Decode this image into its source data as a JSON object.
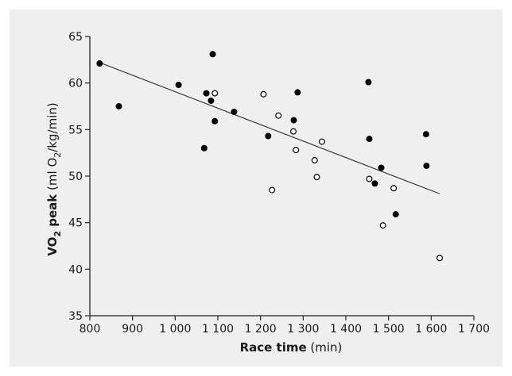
{
  "chart_data": {
    "type": "scatter",
    "title": "",
    "xlabel_bold": "Race time",
    "xlabel_unit": "(min)",
    "ylabel_bold_1": "VO",
    "ylabel_bold_sub": "2",
    "ylabel_bold_2": " peak",
    "ylabel_unit_1": " (ml O",
    "ylabel_unit_sub": "2",
    "ylabel_unit_2": "/kg/min)",
    "xlim": [
      800,
      1700
    ],
    "ylim": [
      35,
      65
    ],
    "x_ticks": [
      800,
      900,
      1000,
      1100,
      1200,
      1300,
      1400,
      1500,
      1600,
      1700
    ],
    "x_tick_labels": [
      "800",
      "900",
      "1 000",
      "1 100",
      "1 200",
      "1 300",
      "1 400",
      "1 500",
      "1 600",
      "1 700"
    ],
    "y_ticks": [
      35,
      40,
      45,
      50,
      55,
      60,
      65
    ],
    "y_tick_labels": [
      "35",
      "40",
      "45",
      "50",
      "55",
      "60",
      "65"
    ],
    "grid": false,
    "legend": "none",
    "series": [
      {
        "marker": "filled",
        "color": "#000000",
        "points": [
          [
            823,
            62.1
          ],
          [
            868,
            57.5
          ],
          [
            1008,
            59.8
          ],
          [
            1068,
            53.0
          ],
          [
            1073,
            58.9
          ],
          [
            1084,
            58.1
          ],
          [
            1088,
            63.1
          ],
          [
            1093,
            55.9
          ],
          [
            1138,
            56.9
          ],
          [
            1218,
            54.3
          ],
          [
            1278,
            56.0
          ],
          [
            1287,
            59.0
          ],
          [
            1453,
            60.1
          ],
          [
            1455,
            54.0
          ],
          [
            1468,
            49.2
          ],
          [
            1483,
            50.9
          ],
          [
            1517,
            45.9
          ],
          [
            1588,
            54.5
          ],
          [
            1589,
            51.1
          ]
        ]
      },
      {
        "marker": "open",
        "color": "#000000",
        "points": [
          [
            1093,
            58.9
          ],
          [
            1207,
            58.8
          ],
          [
            1227,
            48.5
          ],
          [
            1242,
            56.5
          ],
          [
            1277,
            54.8
          ],
          [
            1283,
            52.8
          ],
          [
            1327,
            51.7
          ],
          [
            1332,
            49.9
          ],
          [
            1344,
            53.7
          ],
          [
            1455,
            49.7
          ],
          [
            1487,
            44.7
          ],
          [
            1512,
            48.7
          ],
          [
            1620,
            41.2
          ]
        ]
      }
    ],
    "trendline": {
      "x": [
        823,
        1620
      ],
      "y": [
        62.2,
        48.1
      ]
    }
  }
}
